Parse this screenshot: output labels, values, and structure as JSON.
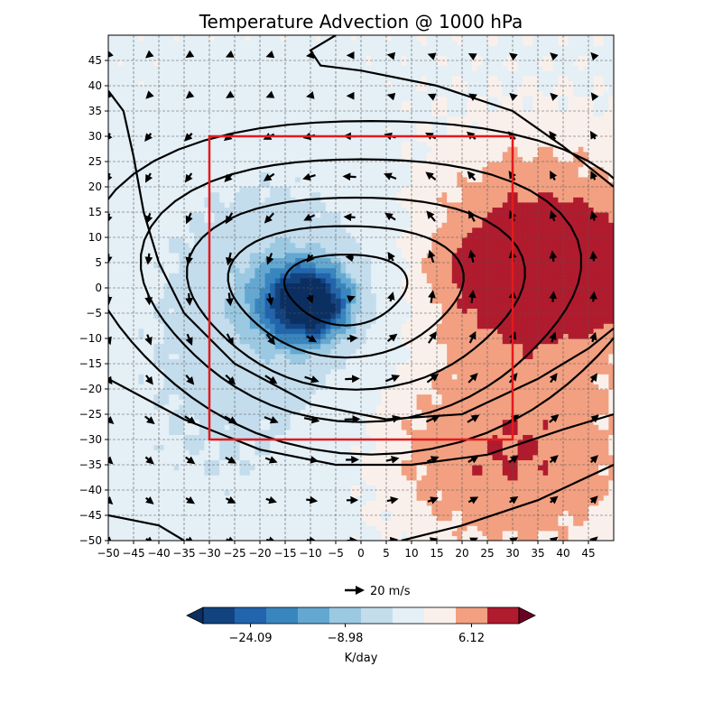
{
  "chart_data": {
    "type": "heatmap",
    "title": "Temperature Advection @ 1000 hPa",
    "xlabel": "",
    "ylabel": "",
    "xlim": [
      -50,
      50
    ],
    "ylim": [
      -50,
      50
    ],
    "grid": true,
    "x_ticks": [
      -50,
      -45,
      -40,
      -35,
      -30,
      -25,
      -20,
      -15,
      -10,
      -5,
      0,
      5,
      10,
      15,
      20,
      25,
      30,
      35,
      40,
      45
    ],
    "y_ticks": [
      -50,
      -45,
      -40,
      -35,
      -30,
      -25,
      -20,
      -15,
      -10,
      -5,
      0,
      5,
      10,
      15,
      20,
      25,
      30,
      35,
      40,
      45
    ],
    "colorbar": {
      "label": "K/day",
      "tick_labels": [
        "−24.09",
        "−8.98",
        "6.12"
      ],
      "tick_values": [
        -24.09,
        -8.98,
        6.12
      ],
      "extend": "both",
      "colors": [
        "#0b2f61",
        "#12437f",
        "#2265ad",
        "#3986bf",
        "#64a8d1",
        "#9bc9e2",
        "#c4dded",
        "#e4eff6",
        "#faf0eb",
        "#f2a081",
        "#b01b2e",
        "#6a0222"
      ]
    },
    "contour_centers": [
      {
        "cx": -3,
        "cy": 0,
        "rx": 12,
        "ry": 7
      },
      {
        "cx": -3,
        "cy": 0,
        "rx": 23,
        "ry": 13
      },
      {
        "cx": -1,
        "cy": 0,
        "rx": 33,
        "ry": 19
      },
      {
        "cx": 0,
        "cy": 1,
        "rx": 43,
        "ry": 26
      },
      {
        "cx": 2,
        "cy": 2,
        "rx": 55,
        "ry": 33
      }
    ],
    "box": {
      "x0": -30,
      "x1": 30,
      "y0": -30,
      "y1": 30,
      "color": "#e31a1c"
    },
    "quiver": {
      "key_label": "20 m/s",
      "key_speed": 20
    }
  }
}
